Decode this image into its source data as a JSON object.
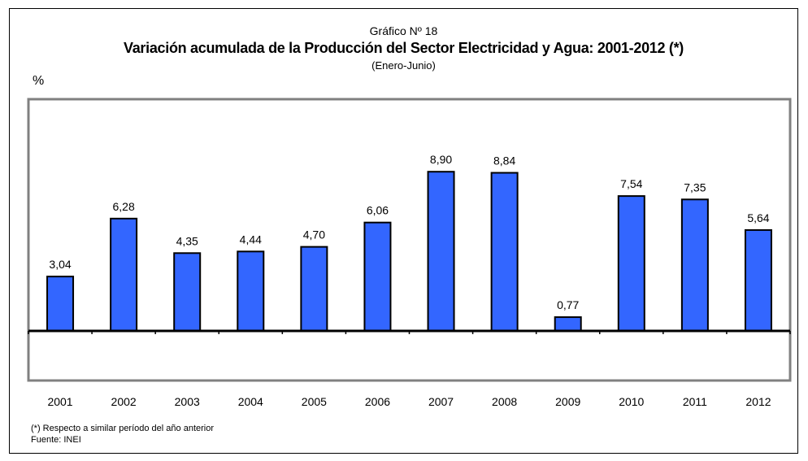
{
  "header": {
    "chart_number": "Gráfico Nº 18",
    "title": "Variación acumulada de la Producción del Sector Electricidad y Agua: 2001-2012 (*)",
    "subtitle": "(Enero-Junio)",
    "unit": "%"
  },
  "footer": {
    "note": "(*) Respecto a similar período del año anterior",
    "source": "Fuente: INEI"
  },
  "chart_data": {
    "type": "bar",
    "title": "Variación acumulada de la Producción del Sector Electricidad y Agua: 2001-2012 (*)",
    "subtitle": "(Enero-Junio)",
    "ylabel": "%",
    "xlabel": "",
    "categories": [
      "2001",
      "2002",
      "2003",
      "2004",
      "2005",
      "2006",
      "2007",
      "2008",
      "2009",
      "2010",
      "2011",
      "2012"
    ],
    "values": [
      3.04,
      6.28,
      4.35,
      4.44,
      4.7,
      6.06,
      8.9,
      8.84,
      0.77,
      7.54,
      7.35,
      5.64
    ],
    "value_labels": [
      "3,04",
      "6,28",
      "4,35",
      "4,44",
      "4,70",
      "6,06",
      "8,90",
      "8,84",
      "0,77",
      "7,54",
      "7,35",
      "5,64"
    ],
    "ylim": [
      -3,
      10
    ],
    "grid": false,
    "bar_color": "#3366ff",
    "plot_border_color": "#808080"
  }
}
